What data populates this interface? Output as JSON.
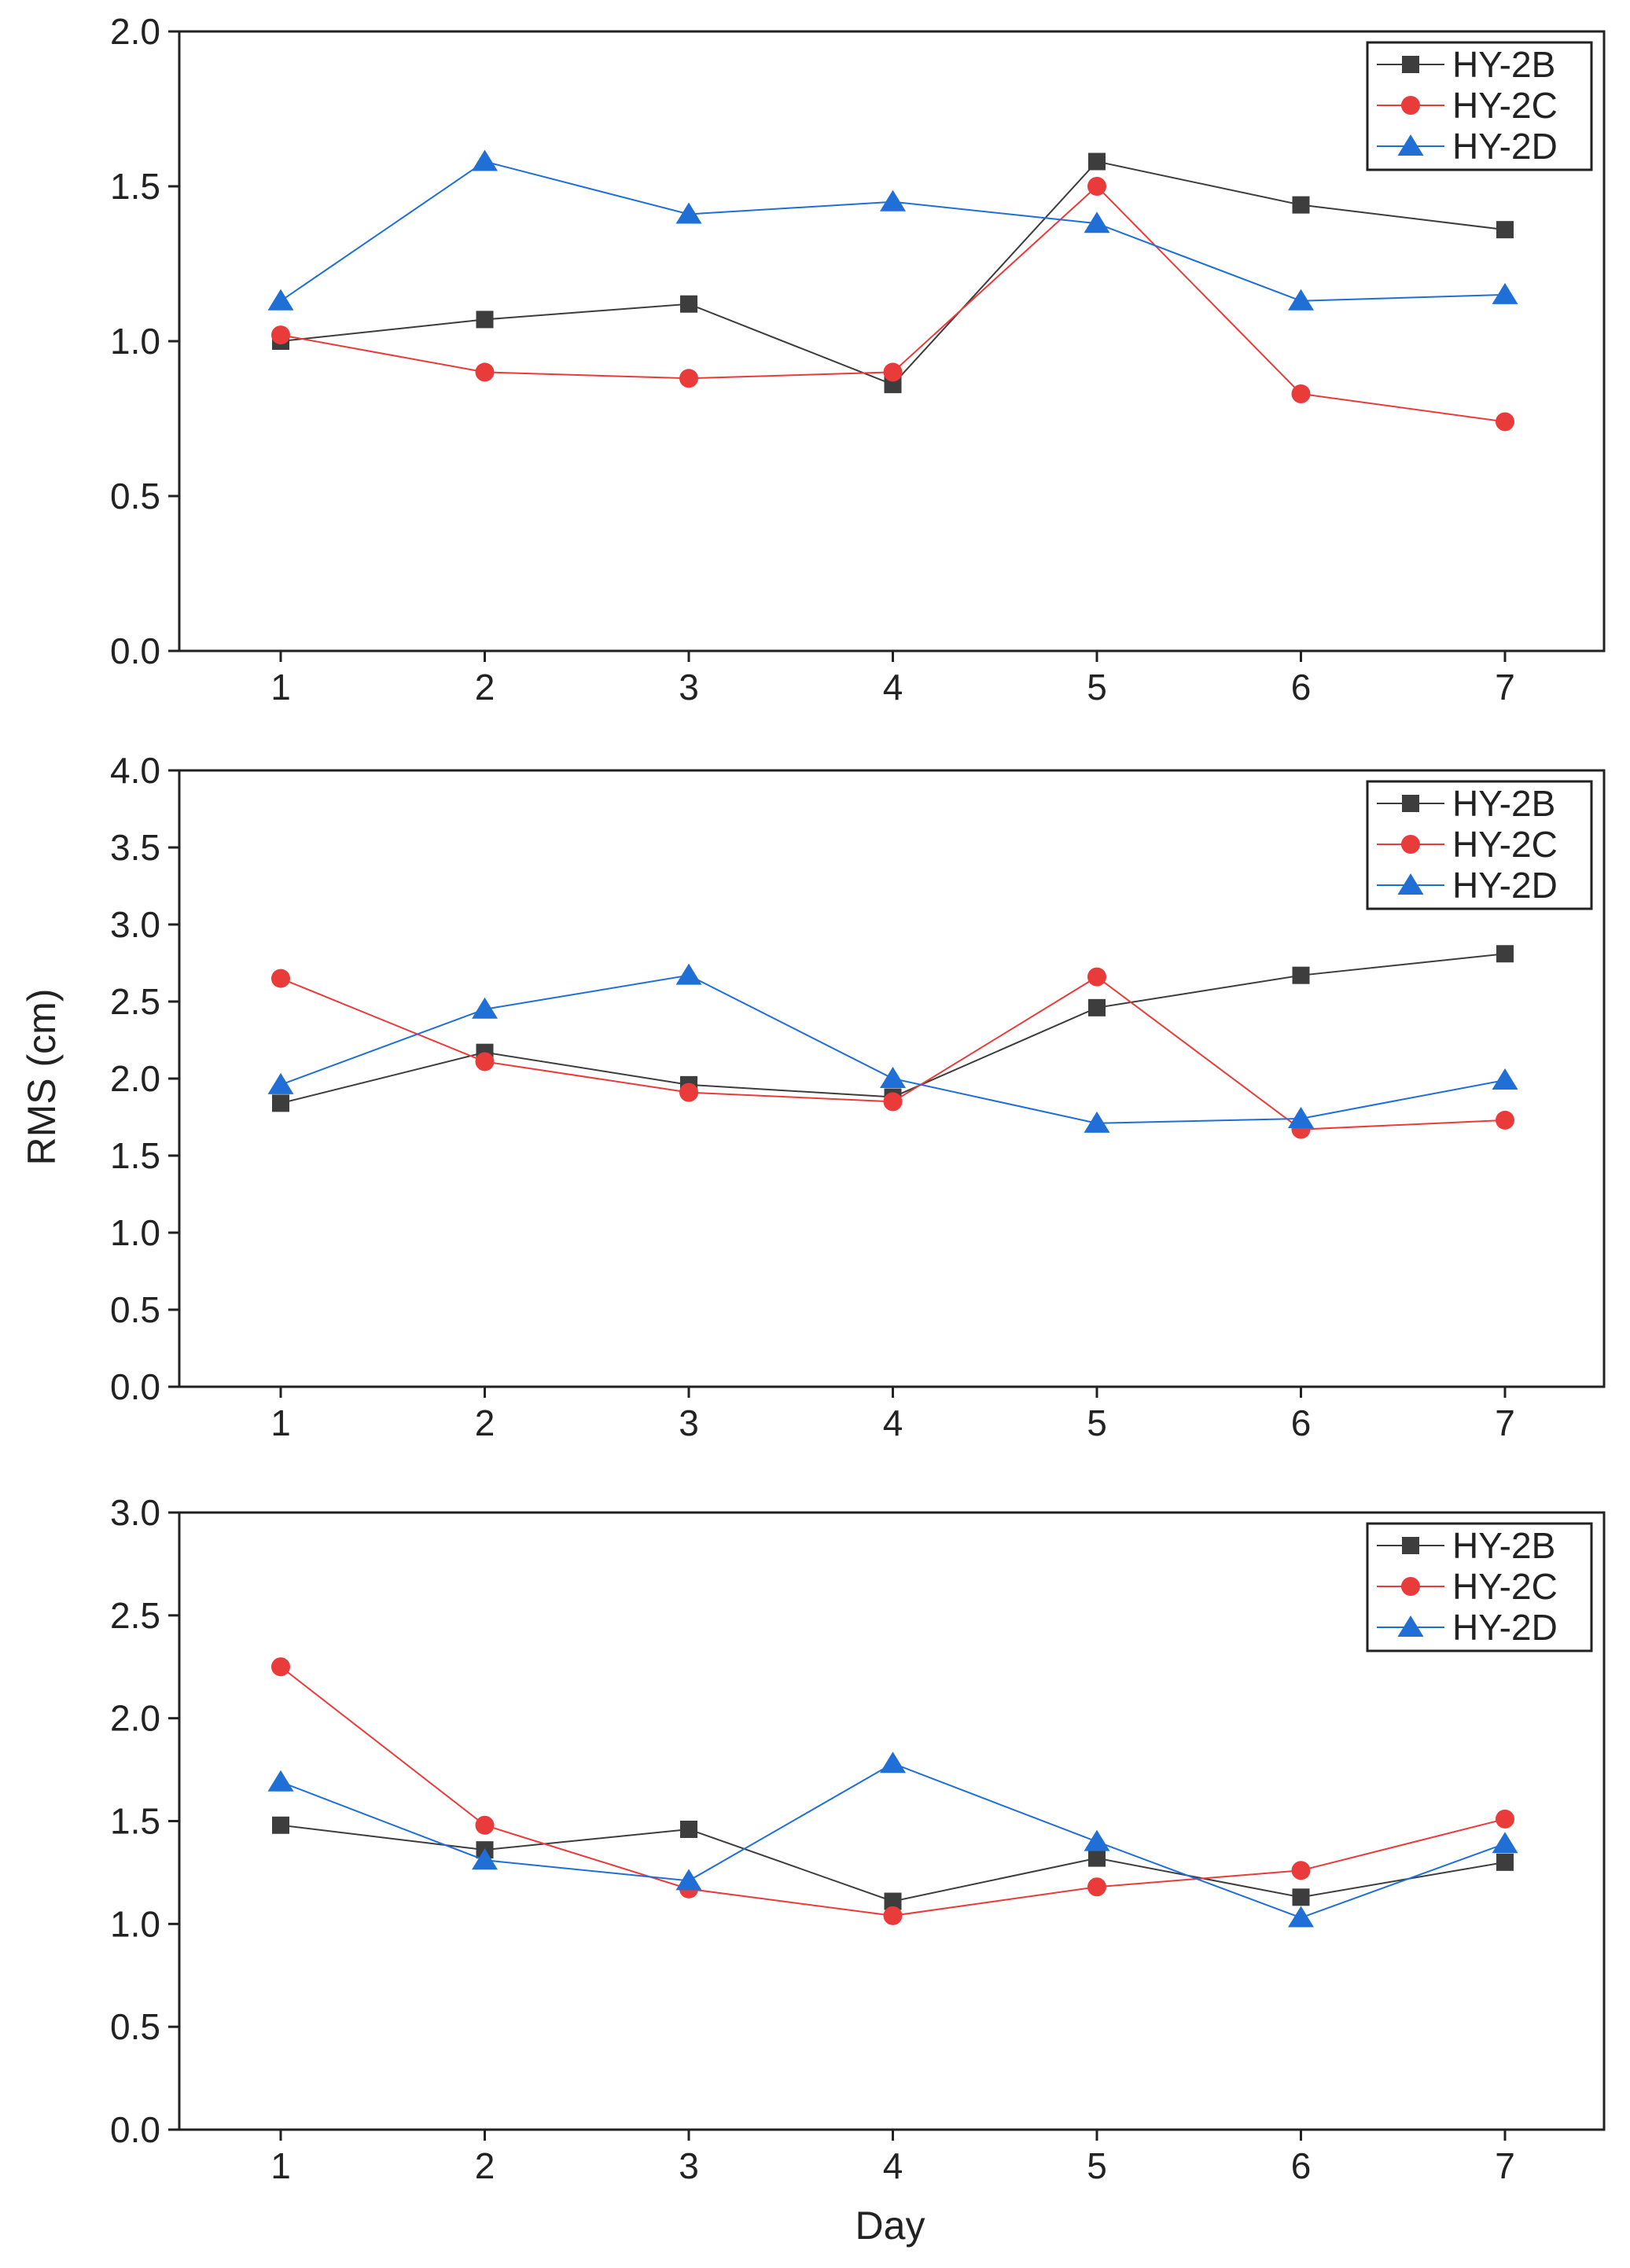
{
  "colors": {
    "HY-2B": "#3d3d3d",
    "HY-2C": "#ea3b3b",
    "HY-2D": "#1f6fd6",
    "axis": "#222222",
    "background": "#ffffff"
  },
  "markers": {
    "HY-2B": "square",
    "HY-2C": "circle",
    "HY-2D": "triangle"
  },
  "figure": {
    "ylabel": "RMS (cm)",
    "xlabel": "Day"
  },
  "chart_data": [
    {
      "type": "line",
      "title": "",
      "xlabel": "",
      "ylabel": "",
      "x": [
        1,
        2,
        3,
        4,
        5,
        6,
        7
      ],
      "xticks": [
        "1",
        "2",
        "3",
        "4",
        "5",
        "6",
        "7"
      ],
      "ylim": [
        0,
        2.0
      ],
      "yticks": [
        "0.0",
        "0.5",
        "1.0",
        "1.5",
        "2.0"
      ],
      "legend_position": "top-right",
      "series": [
        {
          "name": "HY-2B",
          "values": [
            1.0,
            1.07,
            1.12,
            0.86,
            1.58,
            1.44,
            1.36
          ]
        },
        {
          "name": "HY-2C",
          "values": [
            1.02,
            0.9,
            0.88,
            0.9,
            1.5,
            0.83,
            0.74
          ]
        },
        {
          "name": "HY-2D",
          "values": [
            1.13,
            1.58,
            1.41,
            1.45,
            1.38,
            1.13,
            1.15
          ]
        }
      ]
    },
    {
      "type": "line",
      "title": "",
      "xlabel": "",
      "ylabel": "RMS (cm)",
      "x": [
        1,
        2,
        3,
        4,
        5,
        6,
        7
      ],
      "xticks": [
        "1",
        "2",
        "3",
        "4",
        "5",
        "6",
        "7"
      ],
      "ylim": [
        0,
        4.0
      ],
      "yticks": [
        "0.0",
        "0.5",
        "1.0",
        "1.5",
        "2.0",
        "2.5",
        "3.0",
        "3.5",
        "4.0"
      ],
      "legend_position": "top-right",
      "series": [
        {
          "name": "HY-2B",
          "values": [
            1.84,
            2.17,
            1.96,
            1.88,
            2.46,
            2.67,
            2.81
          ]
        },
        {
          "name": "HY-2C",
          "values": [
            2.65,
            2.11,
            1.91,
            1.85,
            2.66,
            1.67,
            1.73
          ]
        },
        {
          "name": "HY-2D",
          "values": [
            1.96,
            2.45,
            2.67,
            2.0,
            1.71,
            1.74,
            1.99
          ]
        }
      ]
    },
    {
      "type": "line",
      "title": "",
      "xlabel": "Day",
      "ylabel": "",
      "x": [
        1,
        2,
        3,
        4,
        5,
        6,
        7
      ],
      "xticks": [
        "1",
        "2",
        "3",
        "4",
        "5",
        "6",
        "7"
      ],
      "ylim": [
        0,
        3.0
      ],
      "yticks": [
        "0.0",
        "0.5",
        "1.0",
        "1.5",
        "2.0",
        "2.5",
        "3.0"
      ],
      "legend_position": "top-right",
      "series": [
        {
          "name": "HY-2B",
          "values": [
            1.48,
            1.36,
            1.46,
            1.11,
            1.32,
            1.13,
            1.3
          ]
        },
        {
          "name": "HY-2C",
          "values": [
            2.25,
            1.48,
            1.17,
            1.04,
            1.18,
            1.26,
            1.51
          ]
        },
        {
          "name": "HY-2D",
          "values": [
            1.69,
            1.31,
            1.21,
            1.78,
            1.4,
            1.03,
            1.39
          ]
        }
      ]
    }
  ]
}
